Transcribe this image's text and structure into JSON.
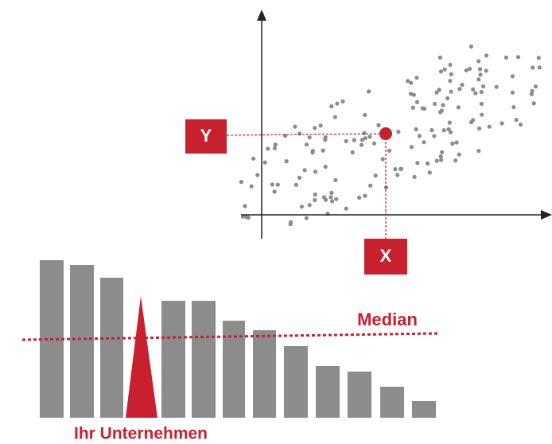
{
  "labels": {
    "y": "Y",
    "x": "X",
    "median": "Median",
    "company": "Ihr Unternehmen"
  }
}
